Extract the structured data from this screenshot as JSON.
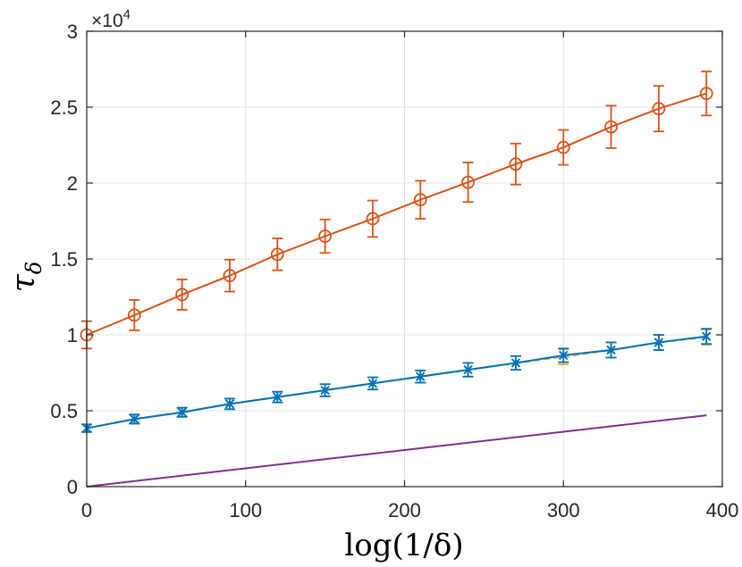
{
  "chart_data": {
    "type": "line",
    "title": "",
    "xlabel": "log(1/δ)",
    "ylabel": "τ",
    "ylabel_subscript": "δ",
    "xlim": [
      0,
      400
    ],
    "ylim": [
      0,
      30000
    ],
    "xticks": [
      0,
      100,
      200,
      300,
      400
    ],
    "xtick_labels": [
      "0",
      "100",
      "200",
      "300",
      "400"
    ],
    "yticks": [
      0,
      5000,
      10000,
      15000,
      20000,
      25000,
      30000
    ],
    "ytick_labels": [
      "0",
      "0.5",
      "1",
      "1.5",
      "2",
      "2.5",
      "3"
    ],
    "y_exponent": {
      "base": "×10",
      "power": "4"
    },
    "grid": true,
    "series": [
      {
        "name": "orange-circle",
        "color": "#D95319",
        "marker": "circle",
        "x": [
          0,
          30,
          60,
          90,
          120,
          150,
          180,
          210,
          240,
          270,
          300,
          330,
          360,
          390
        ],
        "values": [
          10000,
          11300,
          12650,
          13900,
          15300,
          16500,
          17650,
          18900,
          20050,
          21250,
          22350,
          23700,
          24900,
          25900
        ],
        "err": [
          900,
          1000,
          1000,
          1050,
          1050,
          1100,
          1200,
          1250,
          1300,
          1350,
          1150,
          1400,
          1500,
          1450
        ]
      },
      {
        "name": "yellow-dashed",
        "color": "#EDB120",
        "marker": "none",
        "dashed": true,
        "x": [
          0,
          30,
          60,
          90,
          120,
          150,
          180,
          210,
          240,
          270,
          300,
          330,
          360,
          390
        ],
        "values": [
          3850,
          4450,
          4900,
          5450,
          5900,
          6350,
          6800,
          7250,
          7700,
          8150,
          8550,
          9000,
          9500,
          9850
        ],
        "err": [
          250,
          300,
          300,
          350,
          350,
          400,
          400,
          400,
          450,
          450,
          500,
          500,
          500,
          500
        ]
      },
      {
        "name": "blue-x",
        "color": "#0072BD",
        "marker": "x",
        "x": [
          0,
          30,
          60,
          90,
          120,
          150,
          180,
          210,
          240,
          270,
          300,
          330,
          360,
          390
        ],
        "values": [
          3850,
          4450,
          4900,
          5450,
          5900,
          6350,
          6800,
          7250,
          7700,
          8150,
          8650,
          9000,
          9500,
          9900
        ],
        "err": [
          250,
          300,
          300,
          350,
          350,
          400,
          400,
          400,
          450,
          450,
          450,
          500,
          500,
          500
        ]
      },
      {
        "name": "purple-line",
        "color": "#7E2F8E",
        "marker": "none",
        "x": [
          0,
          390
        ],
        "values": [
          0,
          4700
        ],
        "err": null
      }
    ]
  }
}
